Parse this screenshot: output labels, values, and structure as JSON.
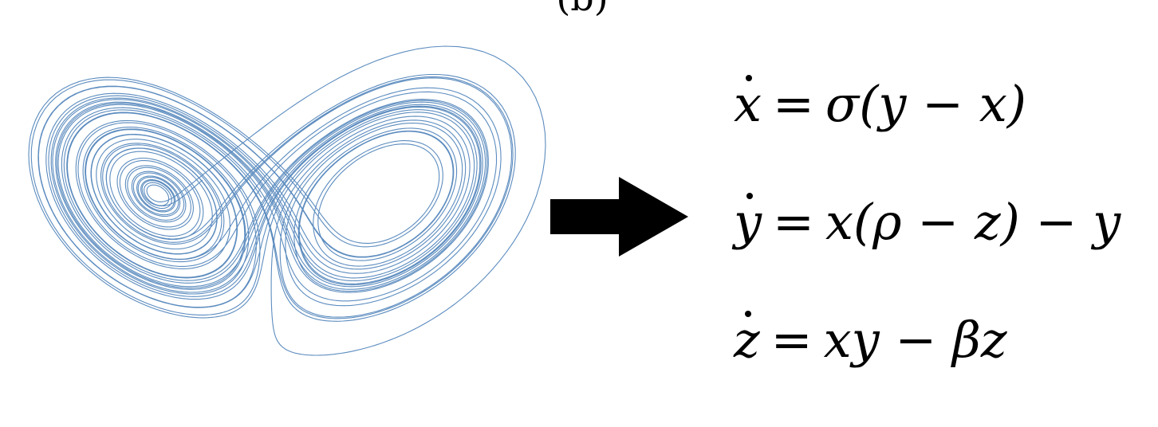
{
  "panel_label": "(b)",
  "attractor": {
    "stroke_color": "#4a7fb8",
    "description_icon": "lorenz-attractor-curve"
  },
  "arrow": {
    "color": "#000000",
    "icon": "right-arrow-icon"
  },
  "equations": [
    {
      "lhs": "x",
      "rhs": "σ(y − x)"
    },
    {
      "lhs": "y",
      "rhs": "x(ρ − z) − y"
    },
    {
      "lhs": "z",
      "rhs": "xy − βz"
    }
  ],
  "equals_sign": "="
}
